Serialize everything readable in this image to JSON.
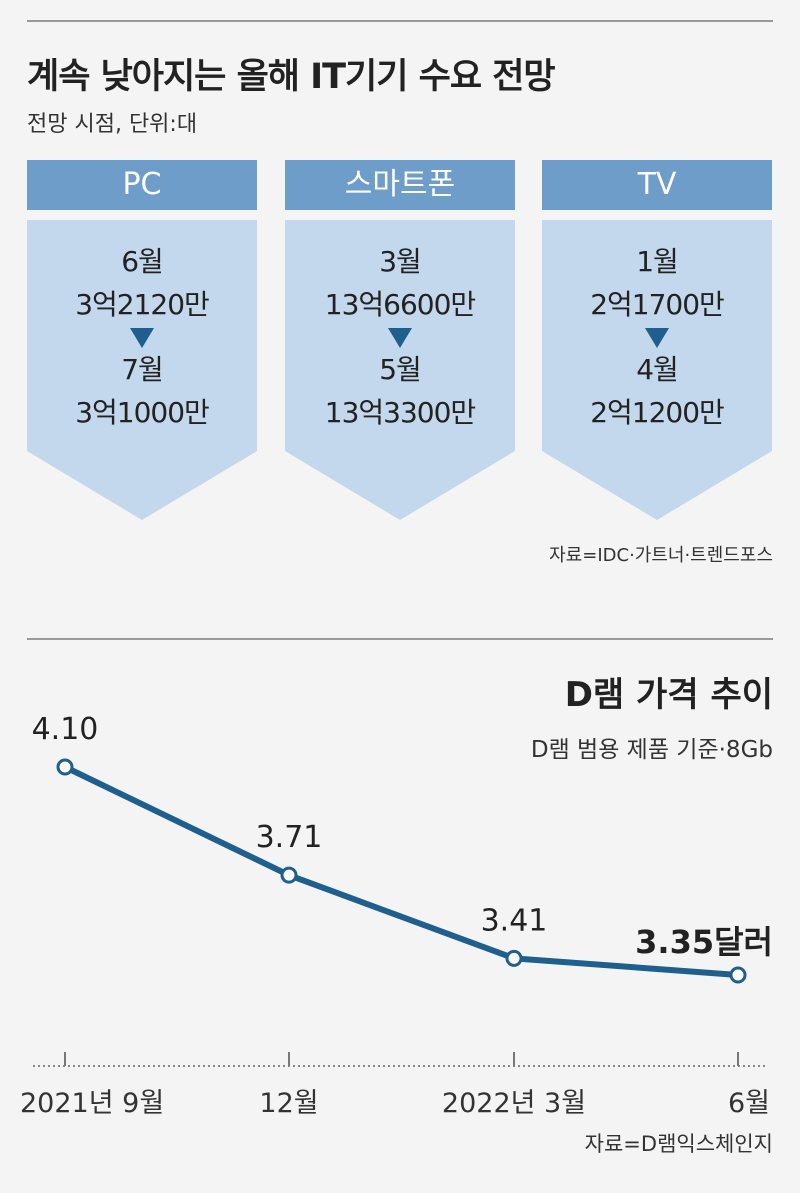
{
  "top": {
    "title": "계속 낮아지는 올해 IT기기 수요 전망",
    "subtitle": "전망 시점, 단위:대",
    "cards": [
      {
        "label": "PC",
        "from_month": "6월",
        "from_value": "3억2120만",
        "to_month": "7월",
        "to_value": "3억1000만"
      },
      {
        "label": "스마트폰",
        "from_month": "3월",
        "from_value": "13억6600만",
        "to_month": "5월",
        "to_value": "13억3300만"
      },
      {
        "label": "TV",
        "from_month": "1월",
        "from_value": "2억1700만",
        "to_month": "4월",
        "to_value": "2억1200만"
      }
    ],
    "source": "자료=IDC·가트너·트렌드포스"
  },
  "colors": {
    "header": "#6d9dc8",
    "body": "#c3d8ec",
    "line": "#1f5f8d",
    "arrow": "#1f5f8d"
  },
  "chart_data": {
    "type": "line",
    "title": "D램 가격 추이",
    "subtitle": "D램 범용 제품 기준·8Gb",
    "categories": [
      "2021년 9월",
      "12월",
      "2022년 3월",
      "6월"
    ],
    "values": [
      4.1,
      3.71,
      3.41,
      3.35
    ],
    "data_labels": [
      "4.10",
      "3.71",
      "3.41",
      "3.35달러"
    ],
    "grid": false,
    "source": "자료=D램익스체인지"
  }
}
